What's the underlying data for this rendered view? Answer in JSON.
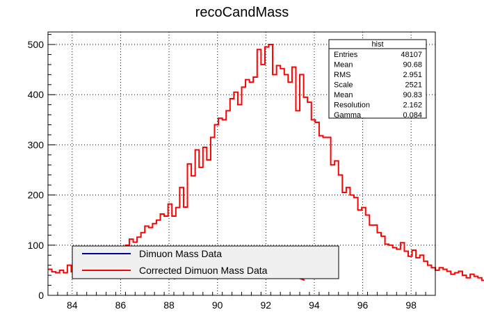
{
  "chart_data": {
    "type": "histogram",
    "title": "recoCandMass",
    "xlabel": "",
    "ylabel": "",
    "xlim": [
      83,
      99
    ],
    "ylim": [
      0,
      525
    ],
    "bin_width": 0.16,
    "x_ticks": [
      84,
      86,
      88,
      90,
      92,
      94,
      96,
      98
    ],
    "y_ticks": [
      0,
      100,
      200,
      300,
      400,
      500
    ],
    "grid": true,
    "colors": {
      "histogram": "#ff0000",
      "fit": "#ff0000",
      "data_legend_line": "#000099"
    },
    "histogram_values": [
      52,
      47,
      45,
      50,
      45,
      60,
      47,
      55,
      60,
      64,
      68,
      70,
      75,
      72,
      77,
      88,
      83,
      92,
      88,
      95,
      100,
      112,
      106,
      116,
      125,
      138,
      135,
      143,
      150,
      162,
      158,
      182,
      158,
      175,
      215,
      176,
      262,
      238,
      290,
      255,
      295,
      270,
      315,
      340,
      353,
      350,
      368,
      392,
      405,
      380,
      415,
      430,
      425,
      435,
      490,
      460,
      495,
      500,
      440,
      458,
      452,
      440,
      425,
      455,
      368,
      440,
      395,
      385,
      350,
      345,
      318,
      315,
      315,
      260,
      268,
      240,
      205,
      215,
      200,
      195,
      170,
      175,
      160,
      140,
      140,
      125,
      118,
      102,
      100,
      95,
      92,
      105,
      88,
      78,
      90,
      75,
      80,
      68,
      60,
      55,
      50,
      55,
      52,
      48,
      42,
      45,
      48,
      40,
      35,
      42,
      38,
      35,
      30,
      35,
      28,
      38,
      32,
      25,
      28,
      20
    ],
    "fit": {
      "function": "Voigt",
      "mean": 90.83,
      "resolution": 2.162,
      "gamma": 0.084,
      "scale": 2521,
      "range": [
        88.2,
        93.6
      ]
    },
    "stats": {
      "title": "hist",
      "rows": [
        {
          "label": "Entries",
          "value": "48107"
        },
        {
          "label": "Mean",
          "value": "90.68"
        },
        {
          "label": "RMS",
          "value": "2.951"
        },
        {
          "label": "Scale",
          "value": "2521"
        },
        {
          "label": "Mean",
          "value": "90.83"
        },
        {
          "label": "Resolution",
          "value": "2.162"
        },
        {
          "label": "Gamma",
          "value": "0.084"
        }
      ]
    },
    "legend": {
      "placement": "bottom-left",
      "entries": [
        {
          "label": "Dimuon Mass Data",
          "color": "#000099"
        },
        {
          "label": "Corrected Dimuon Mass Data",
          "color": "#ff0000"
        }
      ]
    }
  }
}
